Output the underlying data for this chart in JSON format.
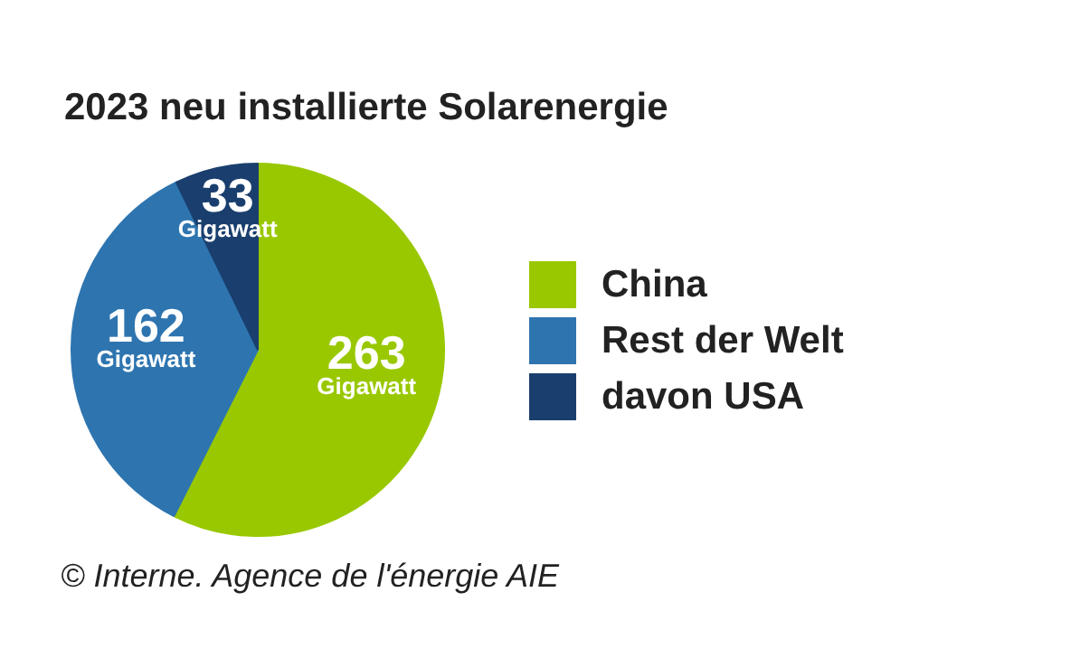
{
  "chart_data": {
    "type": "pie",
    "title": "2023 neu installierte Solarenergie",
    "categories": [
      "China",
      "Rest der Welt",
      "davon USA"
    ],
    "values": [
      263,
      162,
      33
    ],
    "colors": [
      "#99c800",
      "#2e75b0",
      "#1a3f6e"
    ],
    "value_labels": [
      "263\nGigawatt",
      "162\nGigawatt",
      "33\nGigawatt"
    ],
    "legend": "right",
    "annotations": [
      "© Interne. Agence de l'énergie AIE"
    ]
  }
}
